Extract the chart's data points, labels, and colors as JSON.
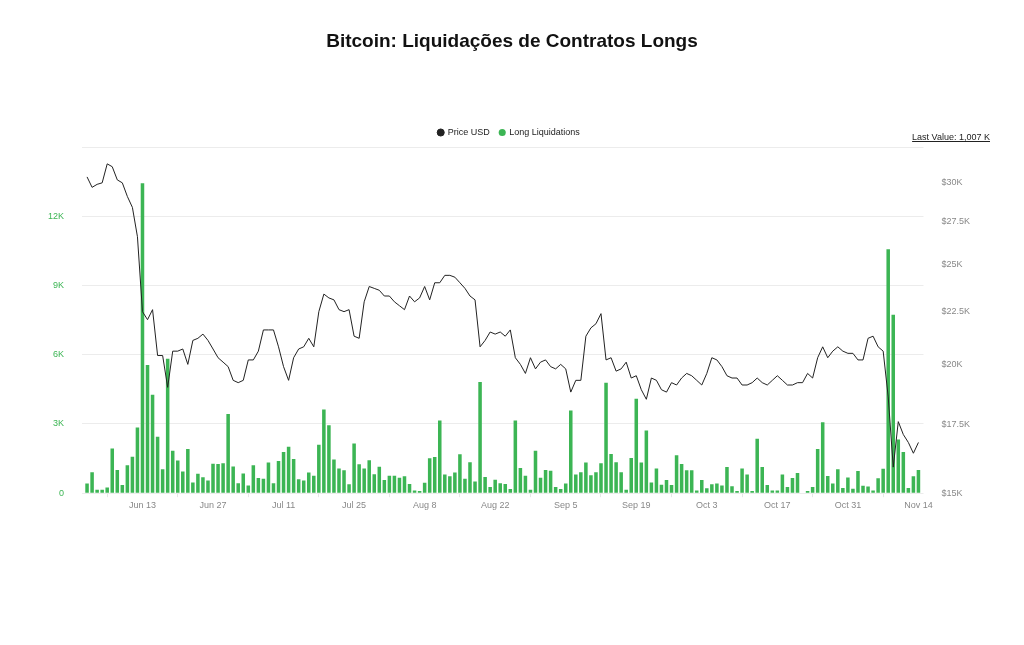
{
  "chart_data": {
    "type": "bar",
    "title": "Bitcoin: Liquidações de Contratos Longs",
    "annotations": [
      "Last Value: 1,007 K"
    ],
    "legend": "top",
    "grid": "y",
    "log": "y2",
    "xlim": [
      "--06-01",
      "--11-15"
    ],
    "xticks": [
      {
        "value": "--06-13",
        "label": "Jun 13"
      },
      {
        "value": "--06-27",
        "label": "Jun 27"
      },
      {
        "value": "--07-11",
        "label": "Jul 11"
      },
      {
        "value": "--07-25",
        "label": "Jul 25"
      },
      {
        "value": "--08-08",
        "label": "Aug 8"
      },
      {
        "value": "--08-22",
        "label": "Aug 22"
      },
      {
        "value": "--09-05",
        "label": "Sep 5"
      },
      {
        "value": "--09-19",
        "label": "Sep 19"
      },
      {
        "value": "--10-03",
        "label": "Oct 3"
      },
      {
        "value": "--10-17",
        "label": "Oct 17"
      },
      {
        "value": "--10-31",
        "label": "Oct 31"
      },
      {
        "value": "--11-14",
        "label": "Nov 14"
      }
    ],
    "ylim": [
      0,
      15000
    ],
    "yticks": [
      0,
      {
        "value": 3000,
        "label": "3K"
      },
      {
        "value": 6000,
        "label": "6K"
      },
      {
        "value": 9000,
        "label": "9K"
      },
      {
        "value": 12000,
        "label": "12K"
      },
      {
        "value": 15000,
        "label": null
      }
    ],
    "y2lim": [
      15000,
      32500
    ],
    "y2ticks": [
      {
        "value": 15000,
        "label": "$15K"
      },
      {
        "value": 17500,
        "label": "$17.5K"
      },
      {
        "value": 20000,
        "label": "$20K"
      },
      {
        "value": 22500,
        "label": "$22.5K"
      },
      {
        "value": 25000,
        "label": "$25K"
      },
      {
        "value": 27500,
        "label": "$27.5K"
      },
      {
        "value": 30000,
        "label": "$30K"
      }
    ],
    "x": [
      "--06-02",
      "--06-03",
      "--06-04",
      "--06-05",
      "--06-06",
      "--06-07",
      "--06-08",
      "--06-09",
      "--06-10",
      "--06-11",
      "--06-12",
      "--06-13",
      "--06-14",
      "--06-15",
      "--06-16",
      "--06-17",
      "--06-18",
      "--06-19",
      "--06-20",
      "--06-21",
      "--06-22",
      "--06-23",
      "--06-24",
      "--06-25",
      "--06-26",
      "--06-27",
      "--06-28",
      "--06-29",
      "--06-30",
      "--07-01",
      "--07-02",
      "--07-03",
      "--07-04",
      "--07-05",
      "--07-06",
      "--07-07",
      "--07-08",
      "--07-09",
      "--07-10",
      "--07-11",
      "--07-12",
      "--07-13",
      "--07-14",
      "--07-15",
      "--07-16",
      "--07-17",
      "--07-18",
      "--07-19",
      "--07-20",
      "--07-21",
      "--07-22",
      "--07-23",
      "--07-24",
      "--07-25",
      "--07-26",
      "--07-27",
      "--07-28",
      "--07-29",
      "--07-30",
      "--07-31",
      "--08-01",
      "--08-02",
      "--08-03",
      "--08-04",
      "--08-05",
      "--08-06",
      "--08-07",
      "--08-08",
      "--08-09",
      "--08-10",
      "--08-11",
      "--08-12",
      "--08-13",
      "--08-14",
      "--08-15",
      "--08-16",
      "--08-17",
      "--08-18",
      "--08-19",
      "--08-20",
      "--08-21",
      "--08-22",
      "--08-23",
      "--08-24",
      "--08-25",
      "--08-26",
      "--08-27",
      "--08-28",
      "--08-29",
      "--08-30",
      "--08-31",
      "--09-01",
      "--09-02",
      "--09-03",
      "--09-04",
      "--09-05",
      "--09-06",
      "--09-07",
      "--09-08",
      "--09-09",
      "--09-10",
      "--09-11",
      "--09-12",
      "--09-13",
      "--09-14",
      "--09-15",
      "--09-16",
      "--09-17",
      "--09-18",
      "--09-19",
      "--09-20",
      "--09-21",
      "--09-22",
      "--09-23",
      "--09-24",
      "--09-25",
      "--09-26",
      "--09-27",
      "--09-28",
      "--09-29",
      "--09-30",
      "--10-01",
      "--10-02",
      "--10-03",
      "--10-04",
      "--10-05",
      "--10-06",
      "--10-07",
      "--10-08",
      "--10-09",
      "--10-10",
      "--10-11",
      "--10-12",
      "--10-13",
      "--10-14",
      "--10-15",
      "--10-16",
      "--10-17",
      "--10-18",
      "--10-19",
      "--10-20",
      "--10-21",
      "--10-22",
      "--10-23",
      "--10-24",
      "--10-25",
      "--10-26",
      "--10-27",
      "--10-28",
      "--10-29",
      "--10-30",
      "--10-31",
      "--11-01",
      "--11-02",
      "--11-03",
      "--11-04",
      "--11-05",
      "--11-06",
      "--11-07",
      "--11-08",
      "--11-09",
      "--11-10",
      "--11-11",
      "--11-12",
      "--11-13",
      "--11-14"
    ],
    "series": [
      {
        "name": "Price USD",
        "type": "line",
        "axis": "y2",
        "color": "#222222",
        "values": [
          30400,
          29700,
          29900,
          30000,
          31300,
          31100,
          30200,
          30000,
          29100,
          28400,
          26600,
          22500,
          22100,
          22600,
          20400,
          20400,
          19000,
          20600,
          20600,
          20700,
          20000,
          21100,
          21200,
          21400,
          21100,
          20700,
          20300,
          20100,
          19900,
          19300,
          19200,
          19300,
          20200,
          20200,
          20600,
          21600,
          21600,
          21600,
          20800,
          19900,
          19300,
          20300,
          20700,
          20800,
          21200,
          20800,
          22500,
          23400,
          23200,
          23100,
          22600,
          22500,
          22600,
          21300,
          21200,
          23000,
          23800,
          23700,
          23600,
          23300,
          23300,
          23000,
          22800,
          22600,
          23300,
          23000,
          23200,
          23800,
          23100,
          24000,
          24000,
          24400,
          24400,
          24300,
          24000,
          23700,
          23300,
          23100,
          20800,
          21100,
          21500,
          21400,
          21500,
          21300,
          21600,
          20300,
          20000,
          19600,
          20300,
          19800,
          20100,
          20200,
          19900,
          19800,
          20000,
          19800,
          18800,
          19300,
          19300,
          21300,
          21700,
          21900,
          22400,
          20200,
          20300,
          19700,
          19800,
          20100,
          19400,
          19500,
          18900,
          18500,
          19400,
          19300,
          18900,
          18800,
          19200,
          19100,
          19400,
          19600,
          19500,
          19300,
          19100,
          19600,
          20300,
          20200,
          19900,
          19500,
          19400,
          19400,
          19100,
          19100,
          19200,
          19400,
          19200,
          19100,
          19300,
          19500,
          19300,
          19100,
          19100,
          19200,
          19200,
          19600,
          19400,
          20300,
          20800,
          20300,
          20600,
          20800,
          20600,
          20500,
          20500,
          20200,
          20200,
          21200,
          21300,
          20800,
          20600,
          18600,
          15900,
          17600,
          17100,
          16800,
          16400,
          16800
        ]
      },
      {
        "name": "Long Liquidations",
        "color": "#3cb554",
        "values": [
          420,
          910,
          150,
          150,
          250,
          1940,
          1010,
          360,
          1210,
          1580,
          2850,
          13430,
          5550,
          4270,
          2450,
          1040,
          5820,
          1840,
          1420,
          940,
          1910,
          460,
          840,
          690,
          550,
          1280,
          1270,
          1300,
          3430,
          1160,
          430,
          850,
          330,
          1210,
          660,
          630,
          1330,
          430,
          1390,
          1790,
          2010,
          1480,
          600,
          550,
          900,
          760,
          2100,
          3630,
          2940,
          1460,
          1070,
          990,
          390,
          2150,
          1250,
          1070,
          1430,
          820,
          1150,
          570,
          760,
          760,
          670,
          730,
          400,
          120,
          90,
          450,
          1510,
          1570,
          3150,
          810,
          730,
          900,
          1690,
          630,
          1340,
          510,
          4820,
          700,
          270,
          580,
          430,
          400,
          180,
          3150,
          1090,
          760,
          150,
          1840,
          670,
          1010,
          970,
          270,
          180,
          420,
          3580,
          810,
          910,
          1330,
          780,
          910,
          1300,
          4790,
          1700,
          1340,
          910,
          150,
          1520,
          4090,
          1330,
          2720,
          460,
          1070,
          370,
          570,
          360,
          1640,
          1270,
          990,
          990,
          120,
          570,
          210,
          390,
          420,
          330,
          1130,
          300,
          90,
          1070,
          810,
          90,
          2360,
          1130,
          360,
          120,
          120,
          810,
          270,
          660,
          870,
          0,
          90,
          270,
          1910,
          3070,
          750,
          420,
          1040,
          230,
          680,
          190,
          960,
          320,
          290,
          120,
          650,
          1060,
          10570,
          7730,
          2330,
          1790,
          220,
          730,
          1007
        ]
      }
    ]
  }
}
